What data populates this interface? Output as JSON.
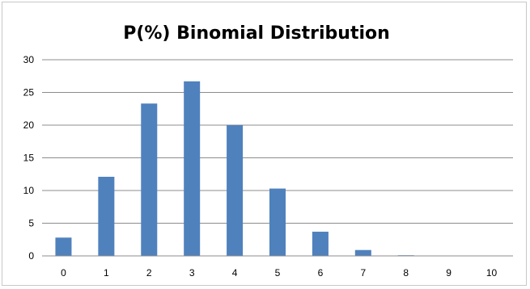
{
  "chart_data": {
    "type": "bar",
    "title": "P(%) Binomial Distribution",
    "xlabel": "",
    "ylabel": "",
    "categories": [
      "0",
      "1",
      "2",
      "3",
      "4",
      "5",
      "6",
      "7",
      "8",
      "9",
      "10"
    ],
    "values": [
      2.8,
      12.1,
      23.3,
      26.7,
      20.0,
      10.3,
      3.7,
      0.9,
      0.1,
      0.0,
      0.0
    ],
    "ylim": [
      0,
      30
    ],
    "yticks": [
      0,
      5,
      10,
      15,
      20,
      25,
      30
    ],
    "grid": true,
    "legend": "none",
    "bar_color": "#4f81bd",
    "grid_color": "#8c8c8c"
  }
}
